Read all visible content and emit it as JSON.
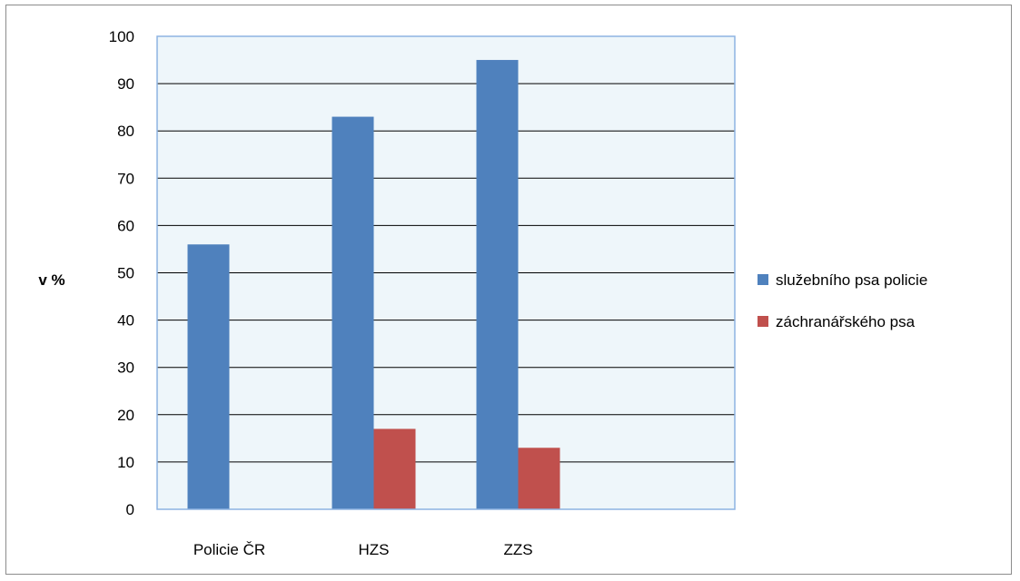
{
  "chart_data": {
    "type": "bar",
    "title": "",
    "xlabel": "",
    "ylabel": "v %",
    "ylim": [
      0,
      100
    ],
    "yticks": [
      0,
      10,
      20,
      30,
      40,
      50,
      60,
      70,
      80,
      90,
      100
    ],
    "categories": [
      "Policie ČR",
      "HZS",
      "ZZS",
      ""
    ],
    "series": [
      {
        "name": "služebního psa policie",
        "color": "#4f81bd",
        "values": [
          56,
          83,
          95,
          null
        ]
      },
      {
        "name": "záchranářského psa",
        "color": "#c0504d",
        "values": [
          null,
          17,
          13,
          null
        ]
      }
    ],
    "grid": true,
    "legend_position": "right",
    "plot_background": "#eef6fa",
    "plot_border_color": "#8db3e2",
    "gridline_color": "#000000"
  }
}
